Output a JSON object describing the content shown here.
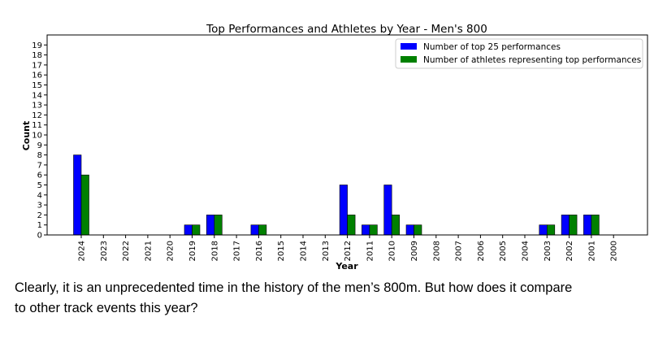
{
  "chart_data": {
    "type": "bar",
    "title": "Top Performances and Athletes by Year - Men's 800",
    "xlabel": "Year",
    "ylabel": "Count",
    "ylim": [
      0,
      20
    ],
    "yticks": [
      0,
      1,
      2,
      3,
      4,
      5,
      6,
      7,
      8,
      9,
      10,
      11,
      12,
      13,
      14,
      15,
      16,
      17,
      18,
      19
    ],
    "grid": false,
    "legend_position": "top-right",
    "categories": [
      "2024",
      "2023",
      "2022",
      "2021",
      "2020",
      "2019",
      "2018",
      "2017",
      "2016",
      "2015",
      "2014",
      "2013",
      "2012",
      "2011",
      "2010",
      "2009",
      "2008",
      "2007",
      "2006",
      "2005",
      "2004",
      "2003",
      "2002",
      "2001",
      "2000"
    ],
    "series": [
      {
        "name": "Number of top 25 performances",
        "color": "#0000ff",
        "values": [
          8,
          0,
          0,
          0,
          0,
          1,
          2,
          0,
          1,
          0,
          0,
          0,
          5,
          1,
          5,
          1,
          0,
          0,
          0,
          0,
          0,
          1,
          2,
          2,
          0
        ]
      },
      {
        "name": "Number of athletes representing top performances",
        "color": "#008000",
        "values": [
          6,
          0,
          0,
          0,
          0,
          1,
          2,
          0,
          1,
          0,
          0,
          0,
          2,
          1,
          2,
          1,
          0,
          0,
          0,
          0,
          0,
          1,
          2,
          2,
          0
        ]
      }
    ]
  },
  "caption": {
    "line1": "Clearly, it is an unprecedented time in the history of the men’s 800m. But how does it compare",
    "line2": "to other track events this year?"
  }
}
